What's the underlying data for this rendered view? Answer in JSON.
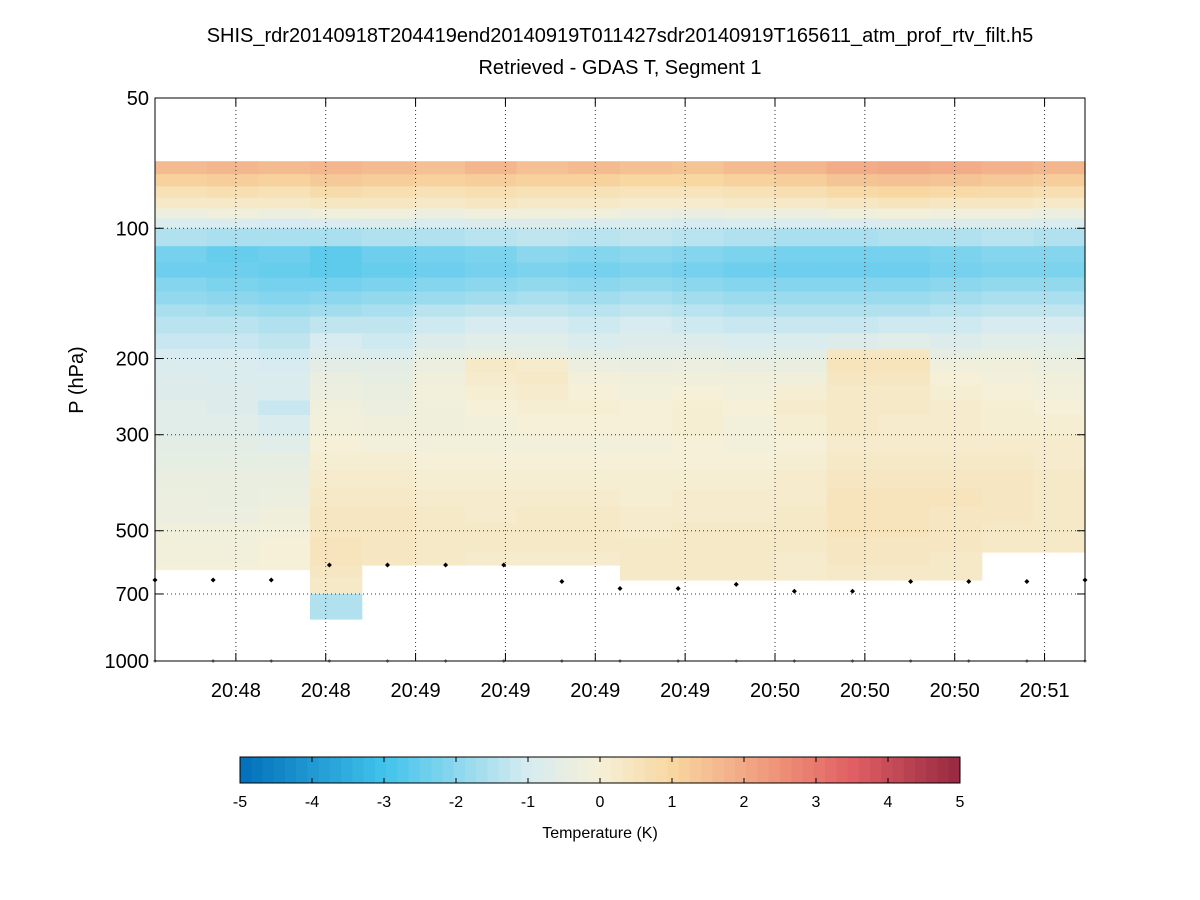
{
  "chart_data": {
    "type": "heatmap",
    "title": "SHIS_rdr20140918T204419end20140919T011427sdr20140919T165611_atm_prof_rtv_filt.h5",
    "subtitle": "Retrieved - GDAS T, Segment 1",
    "ylabel": "P (hPa)",
    "y_scale": "log",
    "y_reversed": true,
    "ylim": [
      1000,
      50
    ],
    "y_ticks": [
      50,
      100,
      200,
      300,
      500,
      700,
      1000
    ],
    "y_tick_labels": [
      "50",
      "100",
      "200",
      "300",
      "500",
      "700",
      "1000"
    ],
    "x_tick_labels": [
      "20:48",
      "20:48",
      "20:49",
      "20:49",
      "20:49",
      "20:49",
      "20:50",
      "20:50",
      "20:50",
      "20:51"
    ],
    "grid": true,
    "colorbar": {
      "label": "Temperature (K)",
      "orientation": "horizontal",
      "range": [
        -5,
        5
      ],
      "ticks": [
        -5,
        -4,
        -3,
        -2,
        -1,
        0,
        1,
        2,
        3,
        4,
        5
      ],
      "tick_labels": [
        "-5",
        "-4",
        "-3",
        "-2",
        "-1",
        "0",
        "1",
        "2",
        "3",
        "4",
        "5"
      ],
      "colormap": "blue-white-red diverging"
    },
    "levels_hPa": [
      70,
      75,
      80,
      85,
      90,
      95,
      100,
      110,
      120,
      130,
      140,
      150,
      160,
      175,
      190,
      200,
      215,
      230,
      250,
      270,
      300,
      330,
      360,
      400,
      440,
      480,
      520,
      560,
      600,
      640,
      700,
      760,
      850
    ],
    "columns": [
      {
        "id": 1,
        "surface_hPa": 615,
        "cells": [
          1.6,
          1.1,
          0.6,
          0.3,
          -0.3,
          -0.9,
          -1.5,
          -2.3,
          -2.4,
          -2.1,
          -1.9,
          -1.6,
          -1.4,
          -1.2,
          -1.0,
          -0.9,
          -0.8,
          -0.8,
          -0.7,
          -0.7,
          -0.6,
          -0.5,
          -0.4,
          -0.3,
          -0.3,
          -0.2,
          -0.1,
          -0.1,
          0.0,
          0.0
        ]
      },
      {
        "id": 2,
        "surface_hPa": 615,
        "cells": [
          1.7,
          1.2,
          0.7,
          0.3,
          -0.2,
          -0.9,
          -1.6,
          -2.5,
          -2.4,
          -2.2,
          -2.0,
          -1.7,
          -1.4,
          -1.2,
          -1.0,
          -0.9,
          -0.9,
          -0.8,
          -0.8,
          -0.7,
          -0.6,
          -0.5,
          -0.4,
          -0.4,
          -0.3,
          -0.2,
          -0.1,
          -0.1,
          0.0,
          0.0
        ]
      },
      {
        "id": 3,
        "surface_hPa": 615,
        "cells": [
          1.6,
          1.1,
          0.6,
          0.3,
          -0.3,
          -1.0,
          -1.6,
          -2.4,
          -2.5,
          -2.3,
          -2.1,
          -1.8,
          -1.5,
          -1.3,
          -1.1,
          -1.0,
          -0.9,
          -0.9,
          -1.2,
          -0.9,
          -0.7,
          -0.5,
          -0.4,
          -0.3,
          -0.2,
          -0.1,
          0.0,
          0.0,
          0.0,
          0.0
        ]
      },
      {
        "id": 4,
        "surface_hPa": 800,
        "cells": [
          1.7,
          1.3,
          0.8,
          0.4,
          -0.2,
          -0.9,
          -1.6,
          -2.6,
          -2.6,
          -2.3,
          -2.0,
          -1.7,
          -1.3,
          -1.0,
          -0.8,
          -0.6,
          -0.4,
          -0.3,
          -0.2,
          -0.1,
          0.0,
          0.1,
          0.2,
          0.3,
          0.4,
          0.4,
          0.5,
          0.5,
          0.4,
          0.3,
          -1.5,
          -1.5
        ]
      },
      {
        "id": 5,
        "surface_hPa": 600,
        "cells": [
          1.6,
          1.2,
          0.7,
          0.4,
          -0.2,
          -0.8,
          -1.5,
          -2.4,
          -2.5,
          -2.2,
          -1.9,
          -1.6,
          -1.3,
          -1.1,
          -0.9,
          -0.6,
          -0.5,
          -0.4,
          -0.3,
          -0.2,
          -0.1,
          0.1,
          0.2,
          0.3,
          0.4,
          0.4,
          0.4,
          0.4,
          0.3
        ]
      },
      {
        "id": 6,
        "surface_hPa": 600,
        "cells": [
          1.5,
          1.1,
          0.6,
          0.3,
          -0.3,
          -0.9,
          -1.5,
          -2.3,
          -2.4,
          -2.1,
          -1.8,
          -1.4,
          -1.1,
          -0.8,
          -0.5,
          -0.3,
          -0.2,
          -0.1,
          -0.2,
          -0.2,
          -0.1,
          0.0,
          0.1,
          0.2,
          0.3,
          0.3,
          0.3,
          0.3,
          0.2
        ]
      },
      {
        "id": 7,
        "surface_hPa": 600,
        "cells": [
          1.7,
          1.2,
          0.7,
          0.4,
          -0.2,
          -0.8,
          -1.4,
          -2.2,
          -2.3,
          -2.0,
          -1.7,
          -1.3,
          -1.0,
          -0.7,
          -0.4,
          0.3,
          0.2,
          0.1,
          0.0,
          -0.1,
          -0.1,
          0.0,
          0.1,
          0.2,
          0.2,
          0.3,
          0.3,
          0.2,
          0.2
        ]
      },
      {
        "id": 8,
        "surface_hPa": 600,
        "cells": [
          1.5,
          1.1,
          0.6,
          0.3,
          -0.2,
          -0.8,
          -1.3,
          -2.0,
          -2.2,
          -1.9,
          -1.6,
          -1.3,
          -1.0,
          -0.7,
          -0.5,
          0.2,
          0.3,
          0.2,
          0.1,
          0.0,
          -0.1,
          0.0,
          0.1,
          0.2,
          0.3,
          0.3,
          0.3,
          0.2,
          0.2
        ]
      },
      {
        "id": 9,
        "surface_hPa": 600,
        "cells": [
          1.6,
          1.1,
          0.6,
          0.3,
          -0.2,
          -0.9,
          -1.4,
          -2.1,
          -2.3,
          -2.0,
          -1.7,
          -1.4,
          -1.1,
          -0.9,
          -0.6,
          -0.3,
          -0.1,
          0.0,
          0.1,
          0.0,
          -0.1,
          0.0,
          0.1,
          0.2,
          0.3,
          0.3,
          0.3,
          0.2,
          0.2
        ]
      },
      {
        "id": 10,
        "surface_hPa": 650,
        "cells": [
          1.5,
          1.0,
          0.5,
          0.2,
          -0.3,
          -0.9,
          -1.3,
          -2.0,
          -2.2,
          -1.9,
          -1.6,
          -1.3,
          -1.0,
          -0.8,
          -0.6,
          -0.4,
          -0.2,
          -0.1,
          0.0,
          0.0,
          -0.1,
          0.0,
          0.1,
          0.1,
          0.2,
          0.2,
          0.3,
          0.3,
          0.3,
          0.3
        ]
      },
      {
        "id": 11,
        "surface_hPa": 650,
        "cells": [
          1.4,
          1.0,
          0.5,
          0.2,
          -0.4,
          -1.0,
          -1.4,
          -2.1,
          -2.3,
          -2.0,
          -1.7,
          -1.4,
          -1.1,
          -0.8,
          -0.6,
          -0.3,
          -0.2,
          0.0,
          0.1,
          0.1,
          0.0,
          0.0,
          0.1,
          0.2,
          0.2,
          0.3,
          0.3,
          0.3,
          0.3,
          0.3
        ]
      },
      {
        "id": 12,
        "surface_hPa": 650,
        "cells": [
          1.6,
          1.1,
          0.6,
          0.3,
          -0.3,
          -0.9,
          -1.5,
          -2.2,
          -2.4,
          -2.1,
          -1.8,
          -1.5,
          -1.2,
          -0.9,
          -0.7,
          -0.4,
          -0.2,
          -0.1,
          0.0,
          -0.1,
          -0.1,
          0.0,
          0.1,
          0.2,
          0.2,
          0.3,
          0.3,
          0.3,
          0.3,
          0.3
        ]
      },
      {
        "id": 13,
        "surface_hPa": 650,
        "cells": [
          1.7,
          1.2,
          0.7,
          0.3,
          -0.3,
          -0.9,
          -1.6,
          -2.3,
          -2.4,
          -2.1,
          -1.8,
          -1.5,
          -1.2,
          -0.9,
          -0.6,
          -0.4,
          -0.2,
          0.1,
          0.2,
          0.1,
          0.0,
          0.1,
          0.2,
          0.2,
          0.3,
          0.3,
          0.3,
          0.2,
          0.2,
          0.2
        ]
      },
      {
        "id": 14,
        "surface_hPa": 650,
        "cells": [
          1.9,
          1.4,
          0.9,
          0.4,
          -0.2,
          -0.9,
          -1.6,
          -2.3,
          -2.4,
          -2.1,
          -1.8,
          -1.5,
          -1.2,
          -0.8,
          0.4,
          0.5,
          0.4,
          0.3,
          0.3,
          0.3,
          0.2,
          0.3,
          0.4,
          0.5,
          0.5,
          0.5,
          0.4,
          0.4,
          0.3,
          0.3
        ]
      },
      {
        "id": 15,
        "surface_hPa": 650,
        "cells": [
          2.0,
          1.5,
          1.0,
          0.5,
          -0.1,
          -0.8,
          -1.5,
          -2.3,
          -2.4,
          -2.1,
          -1.8,
          -1.5,
          -1.1,
          -0.7,
          0.4,
          0.5,
          0.4,
          0.3,
          0.3,
          0.2,
          0.2,
          0.3,
          0.4,
          0.5,
          0.5,
          0.5,
          0.4,
          0.4,
          0.3,
          0.3
        ]
      },
      {
        "id": 16,
        "surface_hPa": 650,
        "cells": [
          1.9,
          1.4,
          0.9,
          0.4,
          -0.2,
          -0.8,
          -1.5,
          -2.2,
          -2.3,
          -2.0,
          -1.7,
          -1.4,
          -1.1,
          -0.8,
          -0.5,
          -0.2,
          0.0,
          0.1,
          0.2,
          0.2,
          0.2,
          0.3,
          0.4,
          0.5,
          0.4,
          0.4,
          0.4,
          0.3,
          0.3,
          0.3
        ]
      },
      {
        "id": 17,
        "surface_hPa": 650,
        "cells": [
          1.8,
          1.3,
          0.8,
          0.4,
          -0.2,
          -0.8,
          -1.4,
          -2.1,
          -2.2,
          -1.9,
          -1.6,
          -1.3,
          -1.0,
          -0.7,
          -0.4,
          -0.2,
          -0.1,
          0.0,
          0.1,
          0.1,
          0.2,
          0.3,
          0.4,
          0.4,
          0.4,
          0.3,
          0.3
        ]
      },
      {
        "id": 18,
        "surface_hPa": 650,
        "cells": [
          1.7,
          1.2,
          0.7,
          0.3,
          -0.3,
          -0.9,
          -1.5,
          -2.1,
          -2.2,
          -1.9,
          -1.6,
          -1.3,
          -1.0,
          -0.7,
          -0.5,
          -0.3,
          -0.2,
          -0.1,
          0.0,
          0.1,
          0.2,
          0.2,
          0.3,
          0.3,
          0.3,
          0.3,
          0.3
        ]
      }
    ],
    "markers": {
      "surface_pressure_hPa": [
        650,
        650,
        650,
        600,
        600,
        600,
        600,
        655,
        680,
        680,
        665,
        690,
        690,
        655,
        655,
        655,
        650
      ],
      "reference_level_hPa": 1000
    }
  }
}
